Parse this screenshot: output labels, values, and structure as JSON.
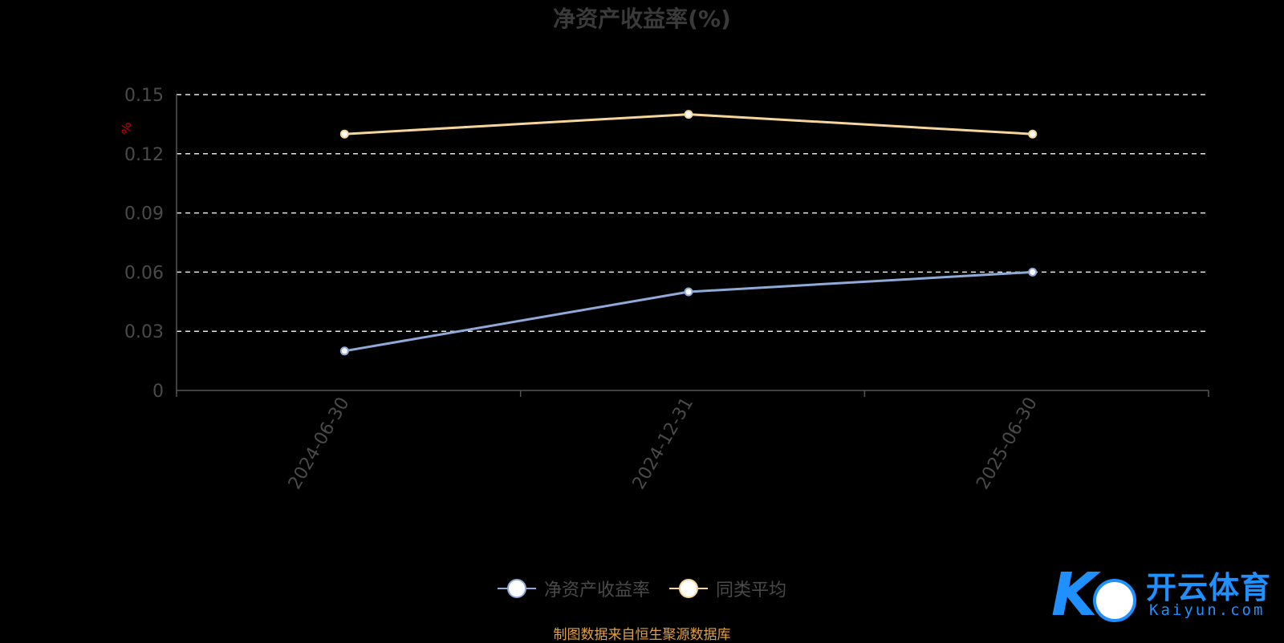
{
  "chart_data": {
    "type": "line",
    "title": "净资产收益率(%)",
    "ylabel": "%",
    "xlabel": "",
    "categories": [
      "2024-06-30",
      "2024-12-31",
      "2025-06-30"
    ],
    "series": [
      {
        "name": "净资产收益率",
        "values": [
          0.02,
          0.05,
          0.06
        ],
        "color": "#8fa9d8"
      },
      {
        "name": "同类平均",
        "values": [
          0.13,
          0.14,
          0.13
        ],
        "color": "#f5d59a"
      }
    ],
    "ylim": [
      0,
      0.15
    ],
    "yticks": [
      "0",
      "0.03",
      "0.06",
      "0.09",
      "0.12",
      "0.15"
    ],
    "grid": true,
    "legend_position": "bottom-center"
  },
  "source_note": "制图数据来自恒生聚源数据库",
  "watermark": {
    "name_cn": "开云体育",
    "name_en": "Kaiyun.com"
  }
}
